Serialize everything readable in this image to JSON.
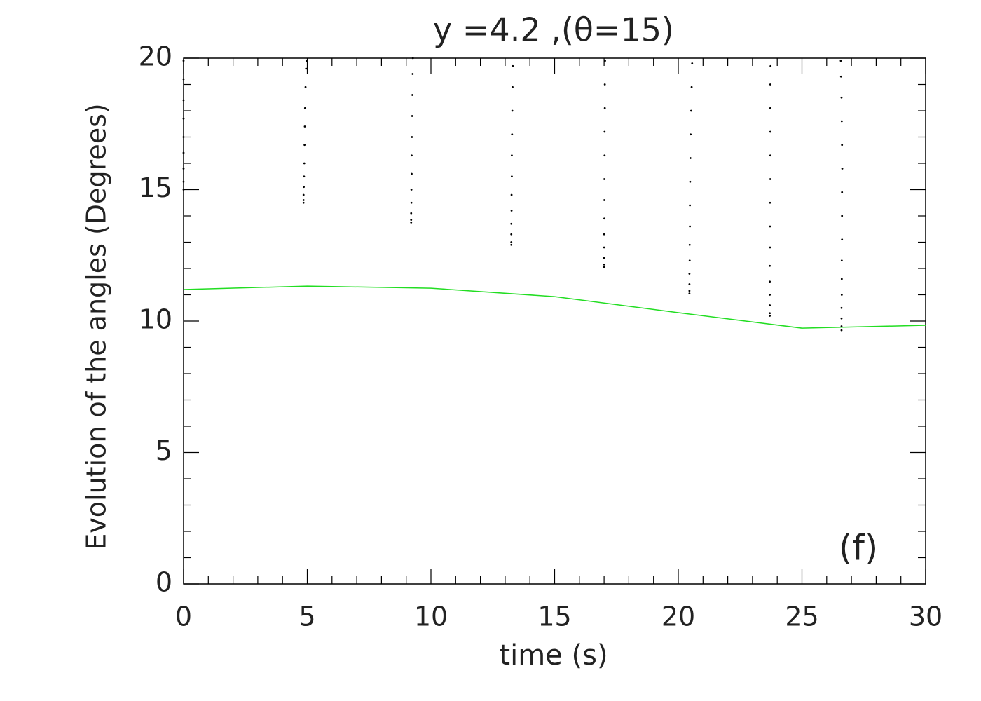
{
  "chart_data": {
    "type": "line",
    "title": "y  =4.2  ,(θ=15)",
    "x_label": "time (s)",
    "y_label": "Evolution of the angles (Degrees)",
    "annotation": "(f)",
    "xlim": [
      0,
      30
    ],
    "xticks": [
      0,
      5,
      10,
      15,
      20,
      25,
      30
    ],
    "ylim": [
      0,
      20
    ],
    "yticks": [
      0,
      5,
      10,
      15,
      20
    ],
    "minor_ticks": true,
    "grid": false,
    "series": [
      {
        "type": "line",
        "color": "#22dd22",
        "x": [
          0,
          5,
          10,
          15,
          20,
          25,
          30
        ],
        "values": [
          11.2,
          11.33,
          11.25,
          10.93,
          10.32,
          9.73,
          9.84
        ]
      },
      {
        "type": "scatter",
        "color": "#000000",
        "x": [
          0,
          0,
          0,
          0,
          0,
          0,
          0,
          0,
          0
        ],
        "values": [
          15.0,
          15.3,
          15.8,
          16.4,
          17.0,
          17.7,
          18.4,
          19.2,
          19.9
        ]
      },
      {
        "type": "scatter",
        "color": "#000000",
        "x": [
          4.85,
          4.85,
          4.85,
          4.86,
          4.87,
          4.88,
          4.89,
          4.9,
          4.91,
          4.93,
          4.95,
          4.97
        ],
        "values": [
          14.5,
          14.6,
          14.8,
          15.1,
          15.5,
          16.0,
          16.7,
          17.4,
          18.1,
          18.9,
          19.6,
          19.9
        ]
      },
      {
        "type": "scatter",
        "color": "#000000",
        "x": [
          9.2,
          9.2,
          9.2,
          9.21,
          9.21,
          9.22,
          9.22,
          9.23,
          9.24,
          9.25,
          9.26,
          9.27
        ],
        "values": [
          13.75,
          13.85,
          14.1,
          14.5,
          15.0,
          15.6,
          16.3,
          17.0,
          17.8,
          18.6,
          19.4,
          20.0
        ]
      },
      {
        "type": "scatter",
        "color": "#000000",
        "x": [
          13.25,
          13.25,
          13.25,
          13.25,
          13.26,
          13.26,
          13.27,
          13.27,
          13.28,
          13.29,
          13.3,
          13.31
        ],
        "values": [
          12.9,
          13.0,
          13.3,
          13.7,
          14.2,
          14.8,
          15.5,
          16.3,
          17.1,
          18.0,
          18.9,
          19.7
        ]
      },
      {
        "type": "scatter",
        "color": "#000000",
        "x": [
          17.0,
          17.0,
          17.0,
          17.0,
          17.0,
          17.01,
          17.01,
          17.01,
          17.02,
          17.02,
          17.03,
          17.03,
          17.04
        ],
        "values": [
          12.05,
          12.15,
          12.4,
          12.8,
          13.3,
          13.9,
          14.6,
          15.4,
          16.3,
          17.2,
          18.1,
          19.0,
          19.9
        ]
      },
      {
        "type": "scatter",
        "color": "#000000",
        "x": [
          20.45,
          20.45,
          20.45,
          20.45,
          20.46,
          20.46,
          20.47,
          20.47,
          20.48,
          20.49,
          20.5,
          20.52,
          20.54,
          20.56
        ],
        "values": [
          11.05,
          11.15,
          11.4,
          11.8,
          12.3,
          12.9,
          13.6,
          14.4,
          15.3,
          16.2,
          17.1,
          18.0,
          18.9,
          19.8
        ]
      },
      {
        "type": "scatter",
        "color": "#000000",
        "x": [
          23.7,
          23.7,
          23.7,
          23.7,
          23.7,
          23.7,
          23.71,
          23.71,
          23.71,
          23.72,
          23.72,
          23.72,
          23.72,
          23.72,
          23.73
        ],
        "values": [
          10.2,
          10.3,
          10.6,
          11.0,
          11.5,
          12.1,
          12.8,
          13.6,
          14.5,
          15.4,
          16.3,
          17.2,
          18.1,
          19.0,
          19.7
        ]
      },
      {
        "type": "scatter",
        "color": "#000000",
        "x": [
          26.6,
          26.6,
          26.6,
          26.6,
          26.61,
          26.61,
          26.61,
          26.62,
          26.62,
          26.62,
          26.63,
          26.62,
          26.61,
          26.6,
          26.58,
          26.57
        ],
        "values": [
          9.65,
          9.8,
          10.1,
          10.5,
          11.0,
          11.6,
          12.3,
          13.1,
          14.0,
          14.9,
          15.8,
          16.7,
          17.6,
          18.5,
          19.3,
          19.9
        ]
      }
    ]
  }
}
